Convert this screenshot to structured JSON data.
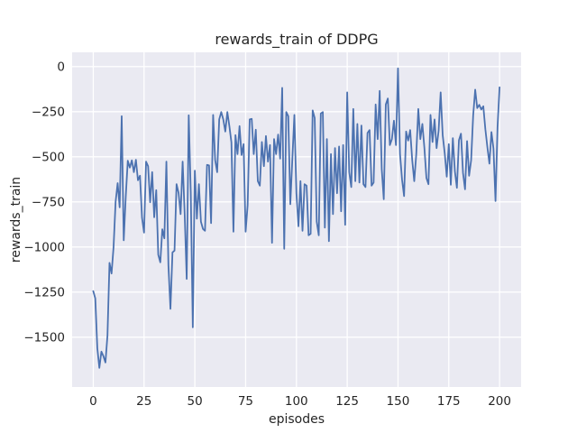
{
  "figure": {
    "title": "rewards_train of DDPG"
  },
  "style": {
    "figure_background": "#ffffff",
    "axes_background": "#eaeaf2",
    "grid_color": "#ffffff",
    "text_color": "#262626",
    "line_color": "#4c72b0"
  },
  "chart_data": {
    "type": "line",
    "title": "rewards_train of DDPG",
    "xlabel": "episodes",
    "ylabel": "rewards_train",
    "legend": null,
    "grid": true,
    "x_ticks": [
      0,
      25,
      50,
      75,
      100,
      125,
      150,
      175,
      200
    ],
    "y_ticks": [
      0,
      -250,
      -500,
      -750,
      -1000,
      -1250,
      -1500
    ],
    "xlim": [
      -10.4,
      210.6
    ],
    "ylim": [
      -1776,
      79
    ],
    "series": [
      {
        "name": "rewards_train",
        "color": "#4c72b0",
        "x_start": 0,
        "x_step": 1,
        "values": [
          -1245,
          -1285,
          -1560,
          -1670,
          -1580,
          -1605,
          -1640,
          -1490,
          -1088,
          -1147,
          -1000,
          -750,
          -646,
          -780,
          -275,
          -963,
          -720,
          -522,
          -560,
          -520,
          -585,
          -517,
          -630,
          -605,
          -838,
          -920,
          -527,
          -552,
          -752,
          -585,
          -835,
          -685,
          -1043,
          -1085,
          -902,
          -952,
          -527,
          -1102,
          -1343,
          -1030,
          -1020,
          -652,
          -700,
          -818,
          -527,
          -818,
          -1177,
          -270,
          -700,
          -1445,
          -577,
          -843,
          -652,
          -860,
          -900,
          -910,
          -545,
          -548,
          -868,
          -268,
          -518,
          -585,
          -293,
          -252,
          -293,
          -360,
          -252,
          -330,
          -420,
          -915,
          -380,
          -485,
          -330,
          -490,
          -430,
          -915,
          -768,
          -293,
          -290,
          -485,
          -350,
          -635,
          -660,
          -418,
          -552,
          -385,
          -527,
          -435,
          -977,
          -402,
          -485,
          -377,
          -510,
          -118,
          -1010,
          -252,
          -275,
          -763,
          -510,
          -268,
          -702,
          -885,
          -635,
          -910,
          -652,
          -660,
          -935,
          -927,
          -243,
          -285,
          -860,
          -935,
          -260,
          -252,
          -893,
          -402,
          -968,
          -485,
          -818,
          -452,
          -702,
          -443,
          -802,
          -435,
          -877,
          -143,
          -585,
          -668,
          -235,
          -635,
          -318,
          -643,
          -327,
          -652,
          -668,
          -368,
          -352,
          -660,
          -643,
          -210,
          -402,
          -135,
          -568,
          -735,
          -210,
          -177,
          -435,
          -402,
          -300,
          -435,
          -10,
          -485,
          -627,
          -718,
          -360,
          -410,
          -352,
          -518,
          -635,
          -485,
          -235,
          -402,
          -318,
          -452,
          -618,
          -652,
          -268,
          -418,
          -293,
          -452,
          -355,
          -143,
          -380,
          -480,
          -610,
          -430,
          -655,
          -397,
          -580,
          -672,
          -408,
          -372,
          -589,
          -680,
          -413,
          -605,
          -520,
          -272,
          -128,
          -230,
          -212,
          -238,
          -220,
          -347,
          -447,
          -538,
          -363,
          -455,
          -745,
          -335,
          -115
        ]
      }
    ]
  }
}
